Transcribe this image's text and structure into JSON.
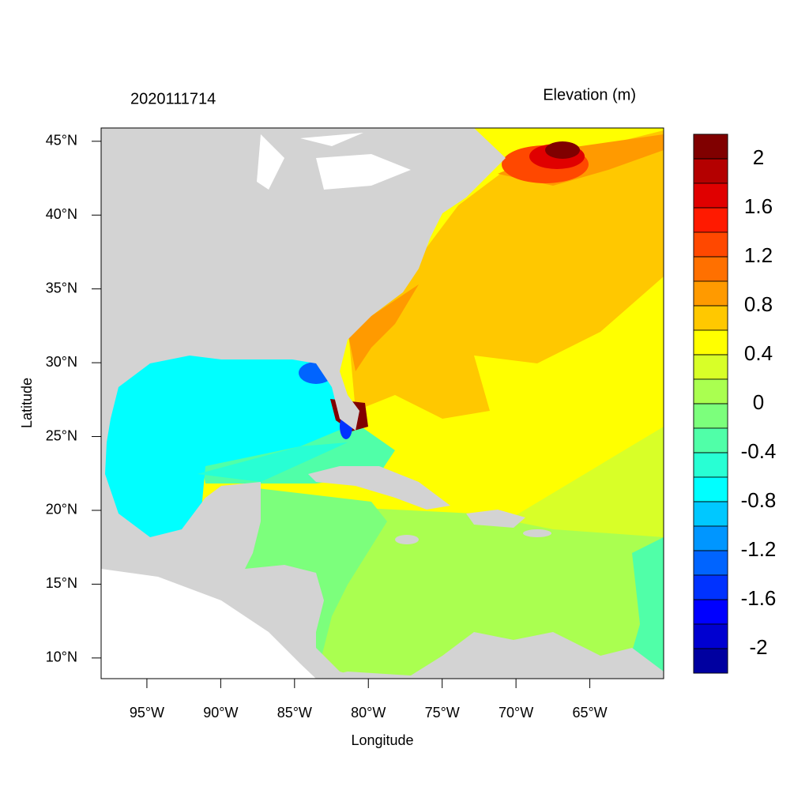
{
  "chart_data": {
    "type": "map",
    "title": "2020111714",
    "subtitle": "Elevation (m)",
    "x_label": "Longitude",
    "y_label": "Latitude",
    "xlim": [
      -98.1,
      -60
    ],
    "ylim": [
      8.6,
      45.9
    ],
    "xticks": [
      {
        "value": -95,
        "label": "95°W"
      },
      {
        "value": -90,
        "label": "90°W"
      },
      {
        "value": -85,
        "label": "85°W"
      },
      {
        "value": -80,
        "label": "80°W"
      },
      {
        "value": -75,
        "label": "75°W"
      },
      {
        "value": -70,
        "label": "70°W"
      },
      {
        "value": -65,
        "label": "65°W"
      }
    ],
    "yticks": [
      {
        "value": 10,
        "label": "10°N"
      },
      {
        "value": 15,
        "label": "15°N"
      },
      {
        "value": 20,
        "label": "20°N"
      },
      {
        "value": 25,
        "label": "25°N"
      },
      {
        "value": 30,
        "label": "30°N"
      },
      {
        "value": 35,
        "label": "35°N"
      },
      {
        "value": 40,
        "label": "40°N"
      },
      {
        "value": 45,
        "label": "45°N"
      }
    ],
    "colorbar": {
      "range": [
        -2.2,
        2.2
      ],
      "ticks": [
        2,
        1.6,
        1.2,
        0.8,
        0.4,
        0,
        -0.4,
        -0.8,
        -1.2,
        -1.6,
        -2
      ],
      "colors": [
        "#800000",
        "#b40000",
        "#e00000",
        "#ff1a00",
        "#ff4800",
        "#ff7000",
        "#ff9a00",
        "#ffc800",
        "#ffff00",
        "#d8ff28",
        "#aaff50",
        "#7cff7c",
        "#50ffa8",
        "#28ffd4",
        "#00ffff",
        "#00c8ff",
        "#0096ff",
        "#0064ff",
        "#0032ff",
        "#0000ff",
        "#0000d0",
        "#0000a0"
      ]
    }
  }
}
